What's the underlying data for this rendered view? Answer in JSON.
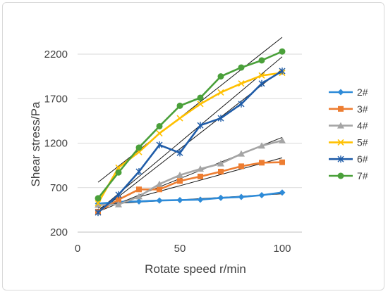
{
  "chart_data": {
    "type": "line",
    "title": "",
    "xlabel": "Rotate speed r/min",
    "ylabel": "Shear  stress/Pa",
    "xlim": [
      0,
      100
    ],
    "ylim": [
      200,
      2200
    ],
    "xticks": [
      0,
      50,
      100
    ],
    "yticks": [
      200,
      700,
      1200,
      1700,
      2200
    ],
    "xtick_labels": [
      "0",
      "50",
      "100"
    ],
    "ytick_labels": [
      "200",
      "700",
      "1200",
      "1700",
      "2200"
    ],
    "grid": "horizontal",
    "legend_position": "right",
    "x": [
      10,
      20,
      30,
      40,
      50,
      60,
      70,
      80,
      90,
      100
    ],
    "series": [
      {
        "name": "2#",
        "color": "#2e8bd8",
        "marker": "diamond",
        "values": [
          520,
          540,
          545,
          555,
          560,
          565,
          585,
          595,
          615,
          645
        ],
        "trend": [
          [
            10,
            510
          ],
          [
            100,
            630
          ]
        ]
      },
      {
        "name": "3#",
        "color": "#ed7d31",
        "marker": "square",
        "values": [
          430,
          565,
          680,
          680,
          775,
          825,
          880,
          940,
          980,
          985
        ],
        "trend": [
          [
            10,
            470
          ],
          [
            100,
            1035
          ]
        ]
      },
      {
        "name": "4#",
        "color": "#a5a5a5",
        "marker": "triangle",
        "values": [
          505,
          510,
          600,
          740,
          840,
          910,
          970,
          1080,
          1170,
          1230
        ],
        "trend": [
          [
            10,
            430
          ],
          [
            100,
            1265
          ]
        ]
      },
      {
        "name": "5#",
        "color": "#ffc000",
        "marker": "x",
        "values": [
          525,
          925,
          1100,
          1310,
          1480,
          1640,
          1770,
          1870,
          1960,
          1990
        ],
        "trend": [
          [
            10,
            440
          ],
          [
            100,
            2170
          ]
        ]
      },
      {
        "name": "6#",
        "color": "#1f5ca8",
        "marker": "star",
        "values": [
          420,
          620,
          880,
          1180,
          1090,
          1400,
          1480,
          1640,
          1870,
          2010
        ],
        "trend": [
          [
            10,
            420
          ],
          [
            100,
            2030
          ]
        ]
      },
      {
        "name": "7#",
        "color": "#4aa03a",
        "marker": "circle",
        "values": [
          580,
          870,
          1150,
          1390,
          1620,
          1710,
          1950,
          2050,
          2130,
          2230
        ],
        "trend": [
          [
            10,
            760
          ],
          [
            100,
            2390
          ]
        ]
      }
    ]
  }
}
